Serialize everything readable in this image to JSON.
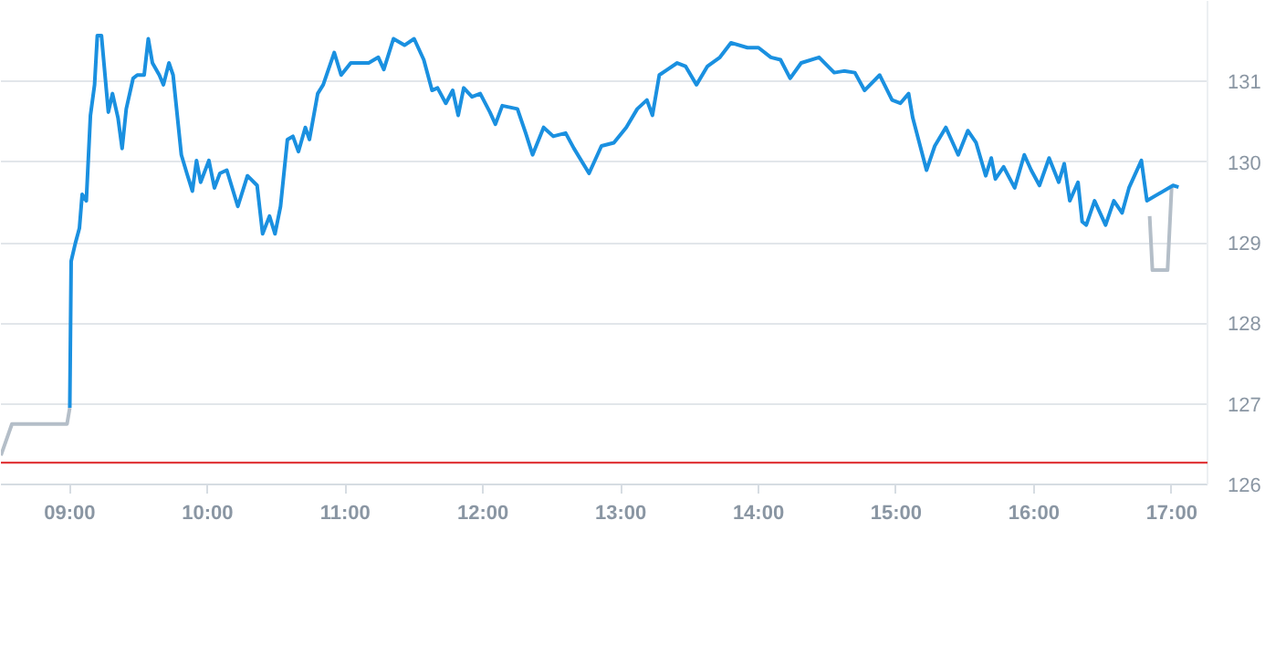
{
  "chart_data": {
    "type": "line",
    "xlim": [
      8.5,
      17.26
    ],
    "ylim": [
      126,
      132
    ],
    "xticks": [
      {
        "value": 9,
        "label": "09:00"
      },
      {
        "value": 10,
        "label": "10:00"
      },
      {
        "value": 11,
        "label": "11:00"
      },
      {
        "value": 12,
        "label": "12:00"
      },
      {
        "value": 13,
        "label": "13:00"
      },
      {
        "value": 14,
        "label": "14:00"
      },
      {
        "value": 15,
        "label": "15:00"
      },
      {
        "value": 16,
        "label": "16:00"
      },
      {
        "value": 17,
        "label": "17:00"
      }
    ],
    "yticks": [
      126,
      127,
      128,
      129,
      130,
      131
    ],
    "grid": "y",
    "line_style": "solid",
    "marker": "none",
    "ref_lines": [
      {
        "axis": "y",
        "value": 126.27,
        "color": "#e0393b"
      }
    ],
    "series": [
      {
        "color": "#b4bec8",
        "x": [
          8.5,
          8.58,
          8.98,
          8.99,
          9.0,
          null,
          16.84,
          16.86,
          16.97,
          17.0
        ],
        "values": [
          126.36,
          126.75,
          126.75,
          126.85,
          126.95,
          null,
          129.33,
          128.66,
          128.66,
          129.7
        ]
      },
      {
        "color": "#1a90e0",
        "x": [
          9.0,
          9.01,
          9.04,
          9.07,
          9.09,
          9.12,
          9.15,
          9.18,
          9.2,
          9.23,
          9.28,
          9.31,
          9.35,
          9.38,
          9.41,
          9.46,
          9.49,
          9.54,
          9.57,
          9.6,
          9.65,
          9.68,
          9.72,
          9.75,
          9.81,
          9.85,
          9.89,
          9.92,
          9.95,
          10.01,
          10.05,
          10.09,
          10.14,
          10.22,
          10.29,
          10.36,
          10.4,
          10.45,
          10.49,
          10.53,
          10.58,
          10.62,
          10.66,
          10.71,
          10.74,
          10.8,
          10.84,
          10.92,
          10.97,
          11.04,
          11.17,
          11.24,
          11.28,
          11.35,
          11.43,
          11.5,
          11.57,
          11.63,
          11.67,
          11.73,
          11.78,
          11.82,
          11.86,
          11.92,
          11.98,
          12.05,
          12.09,
          12.14,
          12.25,
          12.31,
          12.36,
          12.44,
          12.51,
          12.6,
          12.66,
          12.77,
          12.86,
          12.95,
          13.04,
          13.12,
          13.19,
          13.23,
          13.28,
          13.34,
          13.41,
          13.47,
          13.55,
          13.63,
          13.72,
          13.8,
          13.92,
          14.0,
          14.09,
          14.16,
          14.23,
          14.31,
          14.44,
          14.55,
          14.62,
          14.7,
          14.77,
          14.88,
          14.97,
          15.03,
          15.09,
          15.12,
          15.22,
          15.28,
          15.36,
          15.45,
          15.52,
          15.58,
          15.65,
          15.69,
          15.72,
          15.78,
          15.86,
          15.93,
          15.98,
          16.04,
          16.11,
          16.18,
          16.22,
          16.26,
          16.32,
          16.35,
          16.38,
          16.44,
          16.52,
          16.58,
          16.64,
          16.69,
          16.78,
          16.82,
          17.01,
          17.05
        ],
        "values": [
          126.95,
          128.77,
          128.99,
          129.18,
          129.6,
          129.52,
          130.58,
          130.96,
          131.57,
          131.57,
          130.62,
          130.85,
          130.55,
          130.17,
          130.66,
          131.04,
          131.08,
          131.08,
          131.53,
          131.23,
          131.08,
          130.96,
          131.23,
          131.08,
          130.09,
          129.86,
          129.64,
          130.02,
          129.75,
          130.02,
          129.68,
          129.86,
          129.9,
          129.45,
          129.83,
          129.71,
          129.11,
          129.33,
          129.11,
          129.45,
          130.28,
          130.32,
          130.13,
          130.43,
          130.28,
          130.85,
          130.96,
          131.36,
          131.08,
          131.23,
          131.23,
          131.3,
          131.15,
          131.53,
          131.45,
          131.53,
          131.27,
          130.89,
          130.92,
          130.73,
          130.89,
          130.58,
          130.92,
          130.81,
          130.85,
          130.62,
          130.47,
          130.7,
          130.66,
          130.36,
          130.09,
          130.43,
          130.32,
          130.36,
          130.17,
          129.86,
          130.2,
          130.24,
          130.43,
          130.66,
          130.77,
          130.58,
          131.08,
          131.15,
          131.23,
          131.19,
          130.96,
          131.19,
          131.3,
          131.48,
          131.42,
          131.42,
          131.3,
          131.27,
          131.04,
          131.23,
          131.3,
          131.11,
          131.13,
          131.11,
          130.89,
          131.08,
          130.77,
          130.73,
          130.85,
          130.55,
          129.9,
          130.2,
          130.43,
          130.09,
          130.39,
          130.24,
          129.83,
          130.05,
          129.79,
          129.94,
          129.68,
          130.09,
          129.9,
          129.71,
          130.05,
          129.75,
          129.98,
          129.52,
          129.75,
          129.26,
          129.22,
          129.52,
          129.22,
          129.52,
          129.37,
          129.68,
          130.02,
          129.52,
          129.71,
          129.69
        ]
      }
    ]
  }
}
